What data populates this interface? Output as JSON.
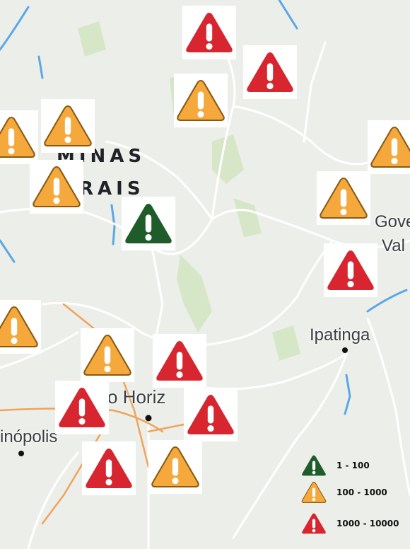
{
  "map": {
    "places": {
      "state_line1": "MINAS",
      "state_line2": "RAIS",
      "city_gov": "Gove",
      "city_val": "Val",
      "city_ipatinga": "Ipatinga",
      "city_bh": "o Horiz",
      "city_contagem": "inópolis"
    }
  },
  "colors": {
    "green": "#1e5c2a",
    "orange": "#f5a83b",
    "red": "#d7262f",
    "water": "#5aa7e6",
    "road": "#ffffff",
    "highway": "#f0a35a",
    "park": "#cfe3be",
    "land": "#ecefe9"
  },
  "markers": [
    {
      "level": "red"
    },
    {
      "level": "red"
    },
    {
      "level": "orange"
    },
    {
      "level": "orange"
    },
    {
      "level": "orange"
    },
    {
      "level": "orange"
    },
    {
      "level": "orange"
    },
    {
      "level": "green"
    },
    {
      "level": "orange"
    },
    {
      "level": "red"
    },
    {
      "level": "orange"
    },
    {
      "level": "orange"
    },
    {
      "level": "red"
    },
    {
      "level": "red"
    },
    {
      "level": "red"
    },
    {
      "level": "red"
    },
    {
      "level": "orange"
    }
  ],
  "legend": {
    "items": [
      {
        "level": "green",
        "label": "1 - 100"
      },
      {
        "level": "orange",
        "label": "100 - 1000"
      },
      {
        "level": "red",
        "label": "1000 - 10000"
      }
    ]
  }
}
